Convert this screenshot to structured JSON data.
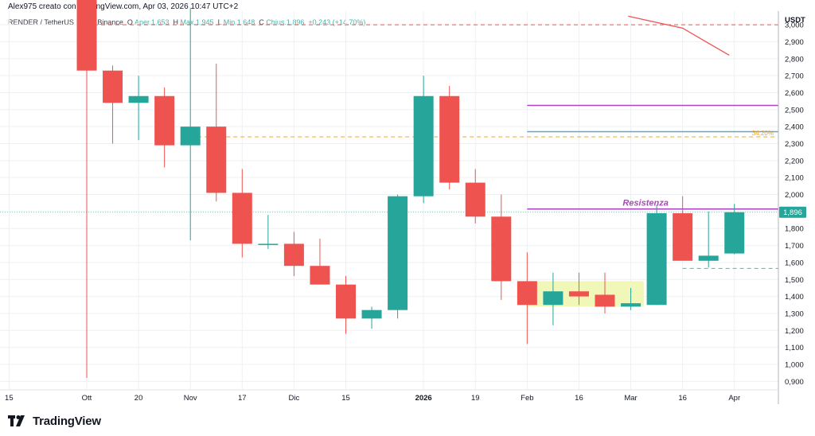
{
  "header": {
    "author_line": "Alex975 creato con TradingView.com, Apr 03, 2026 10:47 UTC+2"
  },
  "legend": {
    "symbol": "RENDER / TetherUS · 1W · Binance",
    "open_label": "O",
    "open_value": "Aper.1,653",
    "high_label": "H",
    "high_value": "Max.1,945",
    "low_label": "L",
    "low_value": "Min.1,648",
    "close_label": "C",
    "close_value": "Chius.1,896",
    "change": "+0,243 (+14,70%)"
  },
  "footer": {
    "brand": "TradingView"
  },
  "colors": {
    "up": "#26a69a",
    "down": "#ef5350",
    "resistance": "#ab47bc",
    "teal_line": "#5fa8c7",
    "orange_dash": "#f5a623",
    "red_dash": "#ef5350",
    "zone_fill": "#f0f7b8",
    "grid": "#eef0f3"
  },
  "chart_data": {
    "type": "candlestick",
    "currency_label": "USDT",
    "ylim": [
      0.85,
      3.08
    ],
    "y_ticks": [
      "0,900",
      "1,000",
      "1,100",
      "1,200",
      "1,300",
      "1,400",
      "1,500",
      "1,600",
      "1,700",
      "1,800",
      "1,900",
      "2,000",
      "2,100",
      "2,200",
      "2,300",
      "2,400",
      "2,500",
      "2,600",
      "2,700",
      "2,800",
      "2,900",
      "3,000"
    ],
    "y_tick_values": [
      0.9,
      1.0,
      1.1,
      1.2,
      1.3,
      1.4,
      1.5,
      1.6,
      1.7,
      1.8,
      1.9,
      2.0,
      2.1,
      2.2,
      2.3,
      2.4,
      2.5,
      2.6,
      2.7,
      2.8,
      2.9,
      3.0
    ],
    "x_ticks": [
      {
        "label": "15",
        "week": -3.0
      },
      {
        "label": "Ott",
        "week": 0.0
      },
      {
        "label": "20",
        "week": 2.0
      },
      {
        "label": "Nov",
        "week": 4.0
      },
      {
        "label": "17",
        "week": 6.0
      },
      {
        "label": "Dic",
        "week": 8.0
      },
      {
        "label": "15",
        "week": 10.0
      },
      {
        "label": "2026",
        "week": 13.0,
        "bold": true
      },
      {
        "label": "19",
        "week": 15.0
      },
      {
        "label": "Feb",
        "week": 17.0
      },
      {
        "label": "16",
        "week": 19.0
      },
      {
        "label": "Mar",
        "week": 21.0
      },
      {
        "label": "16",
        "week": 23.0
      },
      {
        "label": "Apr",
        "week": 25.0
      }
    ],
    "candles": [
      {
        "o": 3.15,
        "h": 3.25,
        "l": 0.92,
        "c": 2.73
      },
      {
        "o": 2.73,
        "h": 2.76,
        "l": 2.3,
        "c": 2.54
      },
      {
        "o": 2.54,
        "h": 2.7,
        "l": 2.32,
        "c": 2.58
      },
      {
        "o": 2.58,
        "h": 2.63,
        "l": 2.16,
        "c": 2.29
      },
      {
        "o": 2.29,
        "h": 3.1,
        "l": 1.73,
        "c": 2.4
      },
      {
        "o": 2.4,
        "h": 2.77,
        "l": 1.96,
        "c": 2.01
      },
      {
        "o": 2.01,
        "h": 2.15,
        "l": 1.63,
        "c": 1.71
      },
      {
        "o": 1.71,
        "h": 1.88,
        "l": 1.68,
        "c": 1.71
      },
      {
        "o": 1.71,
        "h": 1.78,
        "l": 1.52,
        "c": 1.58
      },
      {
        "o": 1.58,
        "h": 1.74,
        "l": 1.48,
        "c": 1.47
      },
      {
        "o": 1.47,
        "h": 1.52,
        "l": 1.18,
        "c": 1.27
      },
      {
        "o": 1.27,
        "h": 1.34,
        "l": 1.21,
        "c": 1.32
      },
      {
        "o": 1.32,
        "h": 2.0,
        "l": 1.27,
        "c": 1.99
      },
      {
        "o": 1.99,
        "h": 2.7,
        "l": 1.95,
        "c": 2.58
      },
      {
        "o": 2.58,
        "h": 2.64,
        "l": 2.03,
        "c": 2.07
      },
      {
        "o": 2.07,
        "h": 2.15,
        "l": 1.83,
        "c": 1.87
      },
      {
        "o": 1.87,
        "h": 2.0,
        "l": 1.38,
        "c": 1.49
      },
      {
        "o": 1.49,
        "h": 1.66,
        "l": 1.12,
        "c": 1.35
      },
      {
        "o": 1.35,
        "h": 1.54,
        "l": 1.23,
        "c": 1.43
      },
      {
        "o": 1.43,
        "h": 1.54,
        "l": 1.35,
        "c": 1.4
      },
      {
        "o": 1.41,
        "h": 1.54,
        "l": 1.3,
        "c": 1.34
      },
      {
        "o": 1.34,
        "h": 1.45,
        "l": 1.32,
        "c": 1.36
      },
      {
        "o": 1.35,
        "h": 1.94,
        "l": 1.35,
        "c": 1.89
      },
      {
        "o": 1.89,
        "h": 1.99,
        "l": 1.62,
        "c": 1.61
      },
      {
        "o": 1.61,
        "h": 1.9,
        "l": 1.57,
        "c": 1.64
      },
      {
        "o": 1.653,
        "h": 1.945,
        "l": 1.648,
        "c": 1.896
      }
    ],
    "last_price_label": "1,896",
    "last_price": 1.896,
    "resistance": {
      "label": "Resistenza",
      "value": 1.915,
      "from_week": 17.0
    },
    "horizontal_lines": [
      {
        "name": "purple-upper",
        "value": 2.525,
        "from_week": 17.0,
        "color": "#ab47bc"
      },
      {
        "name": "teal-line",
        "value": 2.37,
        "from_week": 17.0,
        "color": "#5fa8c7"
      },
      {
        "name": "orange-dashed",
        "value": 2.34,
        "from_week": 4.0,
        "color": "#f5a623",
        "dashed": true,
        "tag": "34,20%"
      },
      {
        "name": "top-red-dashed",
        "value": 3.0,
        "from_week": 0.0,
        "color": "#ef5350",
        "dashed": true
      },
      {
        "name": "cyan-dashed",
        "value": 1.565,
        "from_week": 23.0,
        "color": "#26c6da",
        "dashed": true
      }
    ],
    "zone": {
      "from_week": 17.0,
      "to_week": 21.5,
      "low": 1.34,
      "high": 1.49
    },
    "ma_line": [
      {
        "week": 20.9,
        "value": 3.05
      },
      {
        "week": 23.0,
        "value": 2.98
      },
      {
        "week": 24.8,
        "value": 2.82
      }
    ]
  }
}
